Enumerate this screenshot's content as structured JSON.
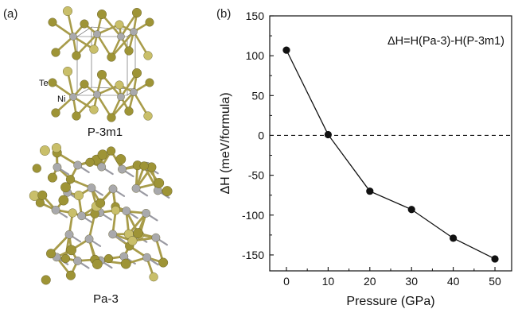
{
  "panels": {
    "a": {
      "label": "(a)"
    },
    "b": {
      "label": "(b)"
    }
  },
  "structures": {
    "top": {
      "name": "P-3m1",
      "atom_labels": [
        "Te",
        "Ni"
      ]
    },
    "bottom": {
      "name": "Pa-3"
    }
  },
  "colors": {
    "te_atom": "#9e9436",
    "te_atom_light": "#c9bf6a",
    "ni_atom": "#a9a9ac",
    "bond": "#a89c4a",
    "bond_gray": "#9a9aa2",
    "cell": "#555555",
    "line": "#111111",
    "marker": "#111111"
  },
  "chart_data": {
    "type": "line",
    "x": [
      0,
      10,
      20,
      30,
      40,
      50
    ],
    "series": [
      {
        "values": [
          107,
          1,
          -70,
          -93,
          -129,
          -155
        ]
      }
    ],
    "xlabel": "Pressure (GPa)",
    "ylabel": "ΔH (meV/formula)",
    "xlim": [
      -4,
      54
    ],
    "ylim": [
      -170,
      150
    ],
    "xticks": [
      0,
      10,
      20,
      30,
      40,
      50
    ],
    "yticks": [
      150,
      100,
      50,
      0,
      -50,
      -100,
      -150
    ],
    "reference_line": {
      "y": 0,
      "style": "dashed"
    },
    "annotation": "ΔH=H(Pa-3)-H(P-3m1)",
    "grid": false,
    "legend": "none"
  }
}
